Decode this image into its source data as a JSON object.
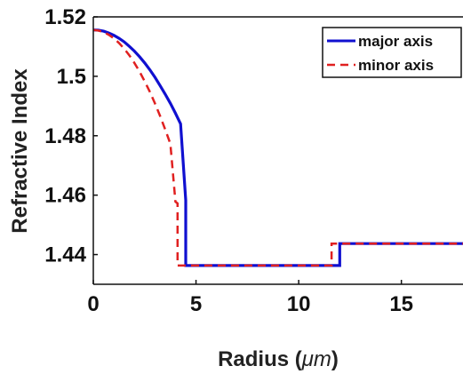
{
  "chart_data": {
    "type": "line",
    "xlabel_prefix": "Radius (",
    "xlabel_unit": "μm",
    "xlabel_suffix": ")",
    "ylabel": "Refractive Index",
    "xlim": [
      0,
      18
    ],
    "ylim": [
      1.43,
      1.52
    ],
    "xticks": [
      0,
      5,
      10,
      15
    ],
    "yticks": [
      1.44,
      1.46,
      1.48,
      1.5,
      1.52
    ],
    "ytick_labels": [
      "1.44",
      "1.46",
      "1.48",
      "1.5",
      "1.52"
    ],
    "grid": false,
    "legend_position": "top-right",
    "series": [
      {
        "name": "major axis",
        "color": "#1010d0",
        "style": "solid",
        "x": [
          0,
          0.25,
          0.5,
          0.75,
          1,
          1.25,
          1.5,
          1.75,
          2,
          2.25,
          2.5,
          2.75,
          3,
          3.25,
          3.5,
          3.75,
          4,
          4.25,
          4.5,
          4.5,
          12,
          12,
          18
        ],
        "y": [
          1.5156,
          1.5155,
          1.5152,
          1.5146,
          1.5138,
          1.5128,
          1.5116,
          1.5101,
          1.5085,
          1.5066,
          1.5045,
          1.5022,
          1.4997,
          1.4969,
          1.494,
          1.4909,
          1.4876,
          1.484,
          1.4583,
          1.4363,
          1.4363,
          1.4437,
          1.4437
        ]
      },
      {
        "name": "minor axis",
        "color": "#e02020",
        "style": "dashed",
        "x": [
          0,
          0.25,
          0.5,
          0.75,
          1,
          1.25,
          1.5,
          1.75,
          2,
          2.25,
          2.5,
          2.75,
          3,
          3.25,
          3.5,
          3.75,
          4,
          4.1,
          4.1,
          11.6,
          11.6,
          18
        ],
        "y": [
          1.5156,
          1.5154,
          1.5149,
          1.514,
          1.5128,
          1.5112,
          1.5093,
          1.5071,
          1.5045,
          1.5016,
          1.4983,
          1.4948,
          1.4909,
          1.4867,
          1.4821,
          1.4773,
          1.4578,
          1.4572,
          1.4363,
          1.4363,
          1.4437,
          1.4437
        ]
      }
    ]
  }
}
